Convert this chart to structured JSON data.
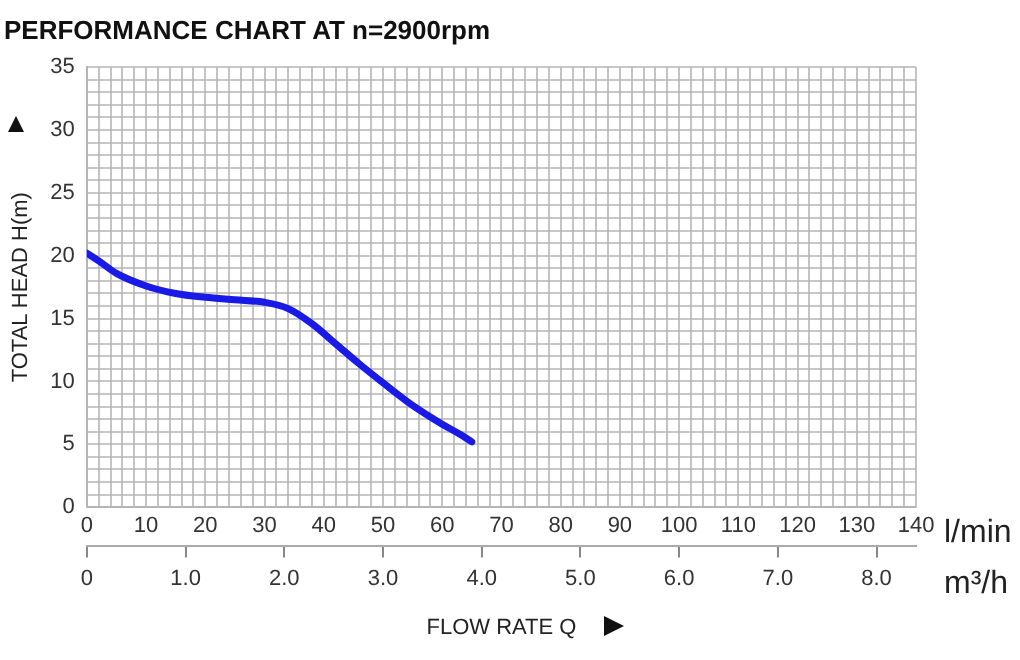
{
  "chart_data": {
    "type": "line",
    "title": "PERFORMANCE CHART AT n=2900rpm",
    "xlabel": "l/min",
    "x2label": "m³/h",
    "ylabel": "TOTAL HEAD H(m)",
    "annotations": [
      "FLOW RATE Q"
    ],
    "series": [
      {
        "color": "#1a1ae6",
        "x": [
          0,
          2,
          5,
          10,
          15,
          20,
          25,
          30,
          34,
          38,
          42,
          46,
          50,
          55,
          60,
          63,
          65
        ],
        "values": [
          20.2,
          19.6,
          18.6,
          17.6,
          17,
          16.7,
          16.5,
          16.3,
          15.8,
          14.6,
          13,
          11.4,
          9.9,
          8.1,
          6.6,
          5.8,
          5.2
        ]
      }
    ],
    "xlim": [
      0,
      140
    ],
    "xticks": [
      0,
      {
        "value": 2,
        "label": null
      },
      {
        "value": 4,
        "label": null
      },
      {
        "value": 6,
        "label": null
      },
      {
        "value": 8,
        "label": null
      },
      10,
      {
        "value": 12,
        "label": null
      },
      {
        "value": 14,
        "label": null
      },
      {
        "value": 16,
        "label": null
      },
      {
        "value": 18,
        "label": null
      },
      20,
      {
        "value": 22,
        "label": null
      },
      {
        "value": 24,
        "label": null
      },
      {
        "value": 26,
        "label": null
      },
      {
        "value": 28,
        "label": null
      },
      30,
      {
        "value": 32,
        "label": null
      },
      {
        "value": 34,
        "label": null
      },
      {
        "value": 36,
        "label": null
      },
      {
        "value": 38,
        "label": null
      },
      40,
      {
        "value": 42,
        "label": null
      },
      {
        "value": 44,
        "label": null
      },
      {
        "value": 46,
        "label": null
      },
      {
        "value": 48,
        "label": null
      },
      50,
      {
        "value": 52,
        "label": null
      },
      {
        "value": 54,
        "label": null
      },
      {
        "value": 56,
        "label": null
      },
      {
        "value": 58,
        "label": null
      },
      60,
      {
        "value": 62,
        "label": null
      },
      {
        "value": 64,
        "label": null
      },
      {
        "value": 66,
        "label": null
      },
      {
        "value": 68,
        "label": null
      },
      70,
      {
        "value": 72,
        "label": null
      },
      {
        "value": 74,
        "label": null
      },
      {
        "value": 76,
        "label": null
      },
      {
        "value": 78,
        "label": null
      },
      80,
      {
        "value": 82,
        "label": null
      },
      {
        "value": 84,
        "label": null
      },
      {
        "value": 86,
        "label": null
      },
      {
        "value": 88,
        "label": null
      },
      90,
      {
        "value": 92,
        "label": null
      },
      {
        "value": 94,
        "label": null
      },
      {
        "value": 96,
        "label": null
      },
      {
        "value": 98,
        "label": null
      },
      100,
      {
        "value": 102,
        "label": null
      },
      {
        "value": 104,
        "label": null
      },
      {
        "value": 106,
        "label": null
      },
      {
        "value": 108,
        "label": null
      },
      110,
      {
        "value": 112,
        "label": null
      },
      {
        "value": 114,
        "label": null
      },
      {
        "value": 116,
        "label": null
      },
      {
        "value": 118,
        "label": null
      },
      120,
      {
        "value": 122,
        "label": null
      },
      {
        "value": 124,
        "label": null
      },
      {
        "value": 126,
        "label": null
      },
      {
        "value": 128,
        "label": null
      },
      130,
      {
        "value": 132,
        "label": null
      },
      {
        "value": 134,
        "label": null
      },
      {
        "value": 136,
        "label": null
      },
      {
        "value": 138,
        "label": null
      },
      140
    ],
    "x2lim": [
      0,
      8.4
    ],
    "x2ticks": [
      0,
      {
        "value": 1,
        "label": "1.0"
      },
      {
        "value": 2,
        "label": "2.0"
      },
      {
        "value": 3,
        "label": "3.0"
      },
      {
        "value": 4,
        "label": "4.0"
      },
      {
        "value": 5,
        "label": "5.0"
      },
      {
        "value": 6,
        "label": "6.0"
      },
      {
        "value": 7,
        "label": "7.0"
      },
      {
        "value": 8,
        "label": "8.0"
      }
    ],
    "ylim": [
      0,
      35
    ],
    "yticks": [
      0,
      {
        "value": 1,
        "label": null
      },
      {
        "value": 2,
        "label": null
      },
      {
        "value": 3,
        "label": null
      },
      {
        "value": 4,
        "label": null
      },
      5,
      {
        "value": 6,
        "label": null
      },
      {
        "value": 7,
        "label": null
      },
      {
        "value": 8,
        "label": null
      },
      {
        "value": 9,
        "label": null
      },
      10,
      {
        "value": 11,
        "label": null
      },
      {
        "value": 12,
        "label": null
      },
      {
        "value": 13,
        "label": null
      },
      {
        "value": 14,
        "label": null
      },
      15,
      {
        "value": 16,
        "label": null
      },
      {
        "value": 17,
        "label": null
      },
      {
        "value": 18,
        "label": null
      },
      {
        "value": 19,
        "label": null
      },
      20,
      {
        "value": 21,
        "label": null
      },
      {
        "value": 22,
        "label": null
      },
      {
        "value": 23,
        "label": null
      },
      {
        "value": 24,
        "label": null
      },
      25,
      {
        "value": 26,
        "label": null
      },
      {
        "value": 27,
        "label": null
      },
      {
        "value": 28,
        "label": null
      },
      {
        "value": 29,
        "label": null
      },
      30,
      {
        "value": 31,
        "label": null
      },
      {
        "value": 32,
        "label": null
      },
      {
        "value": 33,
        "label": null
      },
      {
        "value": 34,
        "label": null
      },
      35
    ],
    "grid": true,
    "marker": "none",
    "line_style": "solid"
  }
}
